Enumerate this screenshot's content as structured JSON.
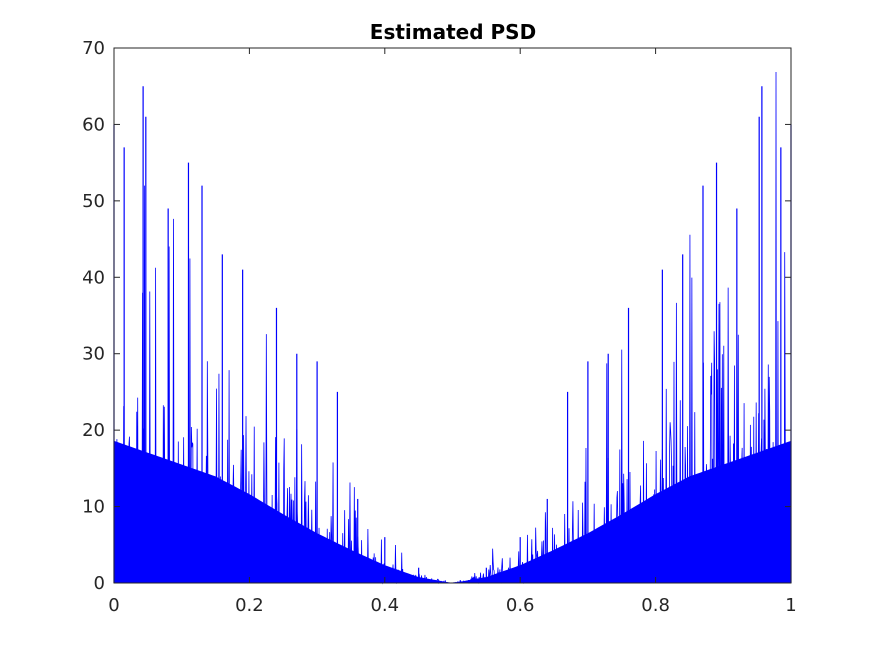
{
  "chart_data": {
    "type": "line",
    "title": "Estimated PSD",
    "xlabel": "",
    "ylabel": "",
    "xlim": [
      0,
      1
    ],
    "ylim": [
      0,
      70
    ],
    "xticks": [
      0,
      0.2,
      0.4,
      0.6,
      0.8,
      1
    ],
    "xtick_labels": [
      "0",
      "0.2",
      "0.4",
      "0.6",
      "0.8",
      "1"
    ],
    "yticks": [
      0,
      10,
      20,
      30,
      40,
      50,
      60,
      70
    ],
    "ytick_labels": [
      "0",
      "10",
      "20",
      "30",
      "40",
      "50",
      "60",
      "70"
    ],
    "grid": false,
    "legend": "none",
    "series_color": "#0000ff",
    "series": [
      {
        "style": "dense noisy periodogram, symmetric about x = 0.5",
        "envelope_x": [
          0.0,
          0.05,
          0.1,
          0.15,
          0.2,
          0.25,
          0.3,
          0.35,
          0.4,
          0.45,
          0.5,
          0.55,
          0.6,
          0.65,
          0.7,
          0.75,
          0.8,
          0.85,
          0.9,
          0.95,
          1.0
        ],
        "envelope_mean": [
          12,
          11,
          10,
          9,
          7.5,
          5.8,
          4.2,
          2.8,
          1.5,
          0.5,
          0.0,
          0.5,
          1.5,
          2.8,
          4.2,
          5.8,
          7.5,
          9,
          10,
          11,
          12
        ],
        "peaks": [
          {
            "x": 0.0,
            "y": 60
          },
          {
            "x": 0.015,
            "y": 57
          },
          {
            "x": 0.043,
            "y": 65
          },
          {
            "x": 0.047,
            "y": 61
          },
          {
            "x": 0.08,
            "y": 49
          },
          {
            "x": 0.11,
            "y": 55
          },
          {
            "x": 0.13,
            "y": 52
          },
          {
            "x": 0.16,
            "y": 43
          },
          {
            "x": 0.19,
            "y": 41
          },
          {
            "x": 0.24,
            "y": 36
          },
          {
            "x": 0.27,
            "y": 30
          },
          {
            "x": 0.3,
            "y": 29
          },
          {
            "x": 0.33,
            "y": 25
          },
          {
            "x": 0.36,
            "y": 11
          },
          {
            "x": 0.4,
            "y": 6
          },
          {
            "x": 0.45,
            "y": 2
          },
          {
            "x": 0.5,
            "y": 0
          },
          {
            "x": 0.55,
            "y": 2
          },
          {
            "x": 0.6,
            "y": 6
          },
          {
            "x": 0.64,
            "y": 11
          },
          {
            "x": 0.67,
            "y": 25
          },
          {
            "x": 0.7,
            "y": 29
          },
          {
            "x": 0.73,
            "y": 30
          },
          {
            "x": 0.76,
            "y": 36
          },
          {
            "x": 0.81,
            "y": 41
          },
          {
            "x": 0.84,
            "y": 43
          },
          {
            "x": 0.87,
            "y": 52
          },
          {
            "x": 0.89,
            "y": 55
          },
          {
            "x": 0.92,
            "y": 49
          },
          {
            "x": 0.953,
            "y": 61
          },
          {
            "x": 0.957,
            "y": 65
          },
          {
            "x": 0.985,
            "y": 57
          },
          {
            "x": 1.0,
            "y": 60
          }
        ]
      }
    ]
  }
}
